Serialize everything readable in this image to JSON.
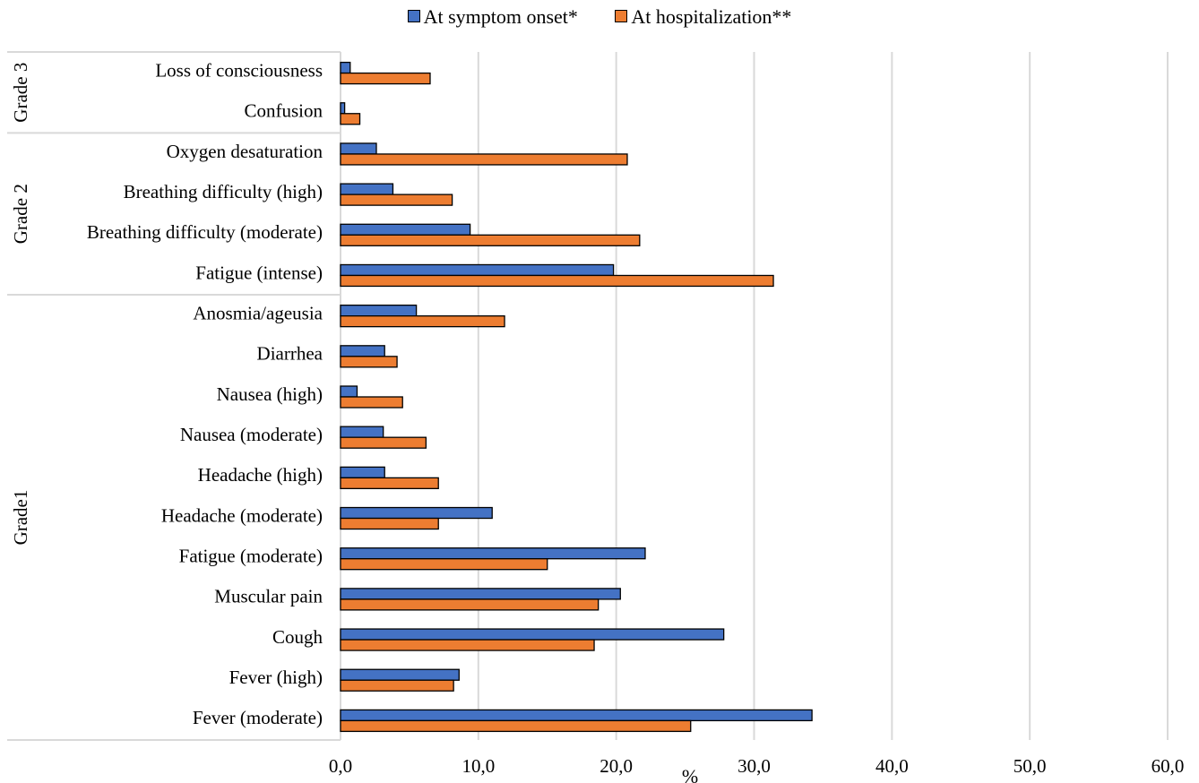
{
  "chart_data": {
    "type": "bar",
    "orientation": "horizontal",
    "xlabel": "%",
    "xlim": [
      0,
      60
    ],
    "xticks": [
      "0,0",
      "10,0",
      "20,0",
      "30,0",
      "40,0",
      "50,0",
      "60,0"
    ],
    "grid": "vertical",
    "legend_position": "top-center",
    "categories": [
      "Loss of consciousness",
      "Confusion",
      "Oxygen desaturation",
      "Breathing difficulty (high)",
      "Breathing difficulty (moderate)",
      "Fatigue (intense)",
      "Anosmia/ageusia",
      "Diarrhea",
      "Nausea (high)",
      "Nausea (moderate)",
      "Headache (high)",
      "Headache  (moderate)",
      "Fatigue (moderate)",
      "Muscular pain",
      "Cough",
      "Fever (high)",
      "Fever (moderate)"
    ],
    "groups": [
      {
        "label": "Grade 3",
        "start": 0,
        "end": 1
      },
      {
        "label": "Grade 2",
        "start": 2,
        "end": 5
      },
      {
        "label": "Grade1",
        "start": 6,
        "end": 16
      }
    ],
    "series": [
      {
        "name": "At symptom onset*",
        "color": "#4472C4",
        "values": [
          0.7,
          0.3,
          2.6,
          3.8,
          9.4,
          19.8,
          5.5,
          3.2,
          1.2,
          3.1,
          3.2,
          11.0,
          22.1,
          20.3,
          27.8,
          8.6,
          34.2
        ]
      },
      {
        "name": "At hospitalization**",
        "color": "#ED7D31",
        "values": [
          6.5,
          1.4,
          20.8,
          8.1,
          21.7,
          31.4,
          11.9,
          4.1,
          4.5,
          6.2,
          7.1,
          7.1,
          15.0,
          18.7,
          18.4,
          8.2,
          25.4
        ]
      }
    ]
  }
}
